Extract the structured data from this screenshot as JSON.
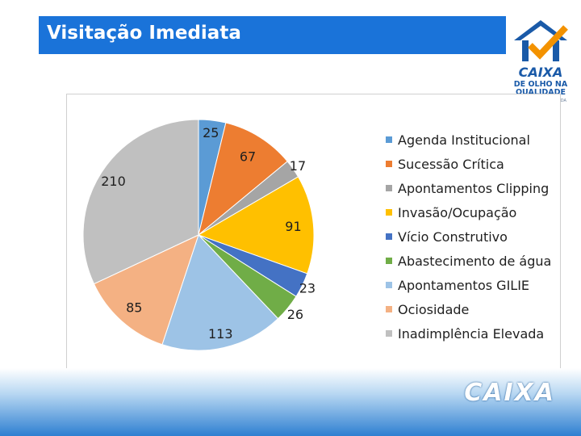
{
  "slide": {
    "title": "Visitação Imediata"
  },
  "logo": {
    "line1": "CAIXA",
    "line2": "DE OLHO NA QUALIDADE",
    "line3": "MINHA CASA MINHA VIDA",
    "icon": "house-check-icon"
  },
  "footer": {
    "logo_text": "CAIXA"
  },
  "chart_data": {
    "type": "pie",
    "title": "",
    "slices": [
      {
        "label": "Agenda Institucional",
        "value": 25,
        "color": "#5b9bd5"
      },
      {
        "label": "Sucessão Crítica",
        "value": 67,
        "color": "#ed7d31"
      },
      {
        "label": "Apontamentos Clipping",
        "value": 17,
        "color": "#a5a5a5"
      },
      {
        "label": "Invasão/Ocupação",
        "value": 91,
        "color": "#ffc000"
      },
      {
        "label": "Vício Construtivo",
        "value": 23,
        "color": "#4472c4"
      },
      {
        "label": "Abastecimento de água",
        "value": 26,
        "color": "#70ad47"
      },
      {
        "label": "Apontamentos GILIE",
        "value": 113,
        "color": "#9dc3e6"
      },
      {
        "label": "Ociosidade",
        "value": 85,
        "color": "#f4b183"
      },
      {
        "label": "Inadimplência Elevada",
        "value": 210,
        "color": "#c0c0c0"
      }
    ],
    "legend_position": "right"
  }
}
